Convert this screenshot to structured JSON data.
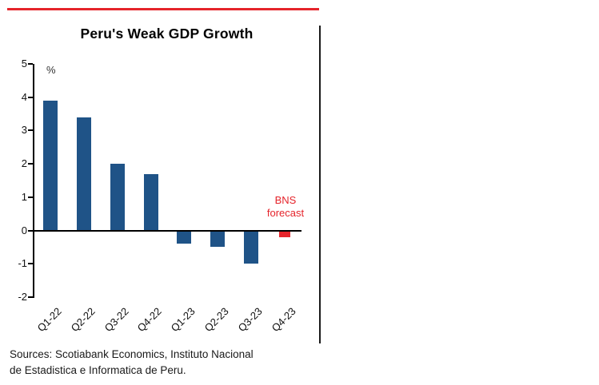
{
  "page": {
    "rule_color": "#e5242b",
    "divider_color": "#1a1a1a",
    "background": "#ffffff"
  },
  "chart_data": {
    "type": "bar",
    "title": "Peru's Weak GDP Growth",
    "ylabel": "%",
    "categories": [
      "Q1-22",
      "Q2-22",
      "Q3-22",
      "Q4-22",
      "Q1-23",
      "Q2-23",
      "Q3-23",
      "Q4-23"
    ],
    "values": [
      3.9,
      3.4,
      2.0,
      1.7,
      -0.4,
      -0.5,
      -1.0,
      -0.2
    ],
    "bar_color": "#1f5387",
    "forecast_bar_color": "#e5242b",
    "forecast_categories": [
      "Q4-23"
    ],
    "annotation": "BNS forecast",
    "ylim": [
      -2,
      5
    ],
    "ytick_step": 1,
    "grid": false,
    "legend": "none",
    "x_tick_rotation_deg": 45
  },
  "footnote": {
    "line1": "Sources: Scotiabank Economics, Instituto Nacional",
    "line2": "de Estadistica e Informatica de Peru."
  }
}
